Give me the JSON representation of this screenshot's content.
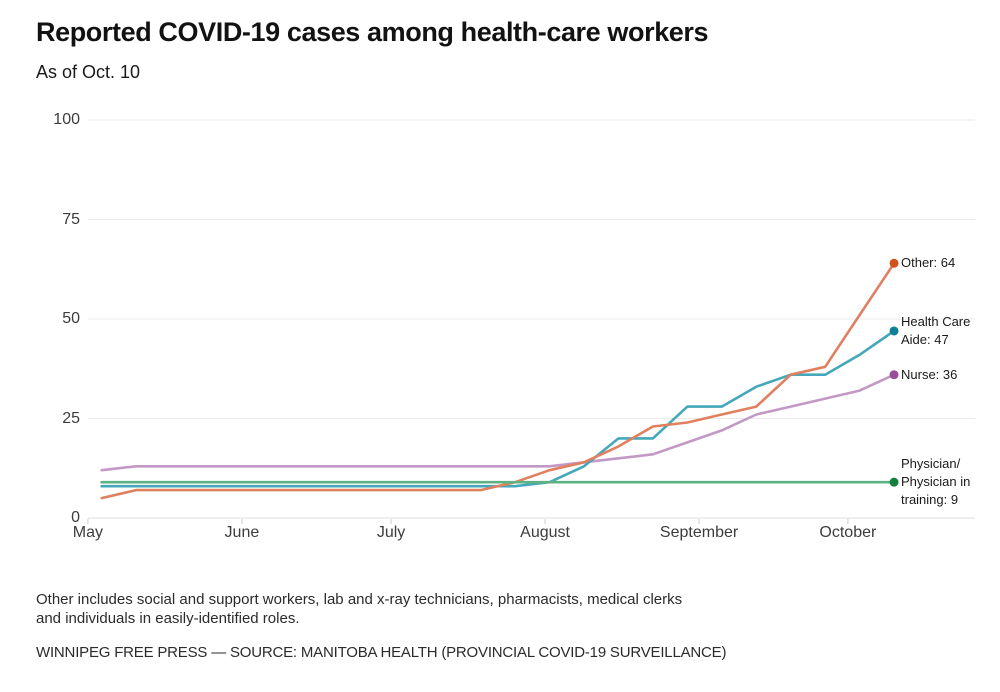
{
  "chart_data": {
    "type": "line",
    "title": "Reported COVID-19 cases among health-care workers",
    "subtitle": "As of Oct. 10",
    "x_axis": {
      "unit": "week",
      "timespan": "weekly points, early May through Oct. 10",
      "tick_labels": [
        "May",
        "June",
        "July",
        "August",
        "September",
        "October"
      ],
      "tick_week_positions": [
        -0.4,
        4.07,
        8.4,
        12.87,
        17.34,
        21.66
      ]
    },
    "y_axis": {
      "range": [
        0,
        100
      ],
      "ticks": [
        0,
        25,
        50,
        75,
        100
      ],
      "grid": true
    },
    "legend_position": "end-of-line labels, right side",
    "series": [
      {
        "name": "Other",
        "end_label_lines": [
          "Other: 64"
        ],
        "end_value": 64,
        "line_color": "#E0805E",
        "dot_color": "#D2521E",
        "values": [
          5,
          7,
          7,
          7,
          7,
          7,
          7,
          7,
          7,
          7,
          7,
          7,
          9,
          12,
          14,
          18,
          23,
          24,
          26,
          28,
          36,
          38,
          51,
          64
        ]
      },
      {
        "name": "Health Care Aide",
        "end_label_lines": [
          "Health Care",
          "Aide: 47"
        ],
        "end_value": 47,
        "line_color": "#45A8BA",
        "dot_color": "#0F7F95",
        "values": [
          8,
          8,
          8,
          8,
          8,
          8,
          8,
          8,
          8,
          8,
          8,
          8,
          8,
          9,
          13,
          20,
          20,
          28,
          28,
          33,
          36,
          36,
          41,
          47
        ]
      },
      {
        "name": "Nurse",
        "end_label_lines": [
          "Nurse: 36"
        ],
        "end_value": 36,
        "line_color": "#C299C4",
        "dot_color": "#9A4D98",
        "values": [
          12,
          13,
          13,
          13,
          13,
          13,
          13,
          13,
          13,
          13,
          13,
          13,
          13,
          13,
          14,
          15,
          16,
          19,
          22,
          26,
          28,
          30,
          32,
          36
        ]
      },
      {
        "name": "Physician/Physician in training",
        "end_label_lines": [
          "Physician/",
          "Physician in",
          "training: 9"
        ],
        "end_value": 9,
        "line_color": "#5CB381",
        "dot_color": "#15803D",
        "values": [
          9,
          9,
          9,
          9,
          9,
          9,
          9,
          9,
          9,
          9,
          9,
          9,
          9,
          9,
          9,
          9,
          9,
          9,
          9,
          9,
          9,
          9,
          9,
          9
        ]
      }
    ]
  },
  "footer": {
    "note_lines": [
      "Other includes social and support workers, lab and x-ray technicians, pharmacists, medical clerks",
      "and individuals in easily-identified roles."
    ],
    "credit": "WINNIPEG FREE PRESS — SOURCE: MANITOBA HEALTH (PROVINCIAL COVID-19 SURVEILLANCE)"
  }
}
